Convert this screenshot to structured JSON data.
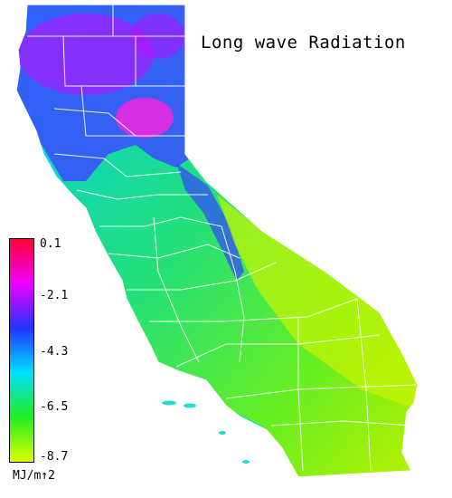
{
  "title": "Long wave Radiation",
  "legend": {
    "ticks": [
      "0.1",
      "-2.1",
      "-4.3",
      "-6.5",
      "-8.7"
    ],
    "unit": "MJ/m↑2",
    "colors": [
      "#ff0033",
      "#ee00ff",
      "#2233ff",
      "#00e0ff",
      "#22ee22",
      "#ddff00"
    ]
  },
  "map": {
    "region": "California",
    "colors": {
      "high": "#cc00ff",
      "mid_high": "#3344ff",
      "mid": "#00d5ff",
      "low": "#22ee55",
      "lowest": "#bbf000",
      "boundary": "#ffffff"
    }
  }
}
